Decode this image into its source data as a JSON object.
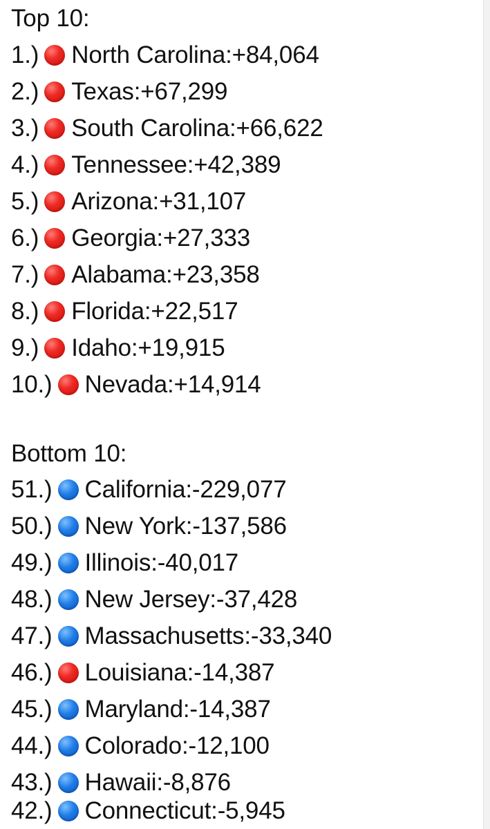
{
  "top_heading": "Top 10:",
  "top": [
    {
      "rank": "1.)",
      "color": "red",
      "state": "North Carolina",
      "value": "+84,064"
    },
    {
      "rank": "2.)",
      "color": "red",
      "state": "Texas",
      "value": "+67,299"
    },
    {
      "rank": "3.)",
      "color": "red",
      "state": "South Carolina",
      "value": "+66,622"
    },
    {
      "rank": "4.)",
      "color": "red",
      "state": "Tennessee",
      "value": "+42,389"
    },
    {
      "rank": "5.)",
      "color": "red",
      "state": "Arizona",
      "value": "+31,107"
    },
    {
      "rank": "6.)",
      "color": "red",
      "state": "Georgia",
      "value": "+27,333"
    },
    {
      "rank": "7.)",
      "color": "red",
      "state": "Alabama",
      "value": "+23,358"
    },
    {
      "rank": "8.)",
      "color": "red",
      "state": "Florida",
      "value": "+22,517"
    },
    {
      "rank": "9.)",
      "color": "red",
      "state": "Idaho",
      "value": "+19,915"
    },
    {
      "rank": "10.)",
      "color": "red",
      "state": "Nevada",
      "value": "+14,914"
    }
  ],
  "bottom_heading": "Bottom 10:",
  "bottom": [
    {
      "rank": "51.)",
      "color": "blue",
      "state": "California",
      "value": "-229,077"
    },
    {
      "rank": "50.)",
      "color": "blue",
      "state": "New York",
      "value": "-137,586"
    },
    {
      "rank": "49.)",
      "color": "blue",
      "state": "Illinois",
      "value": "-40,017"
    },
    {
      "rank": "48.)",
      "color": "blue",
      "state": "New Jersey",
      "value": "-37,428"
    },
    {
      "rank": "47.)",
      "color": "blue",
      "state": "Massachusetts",
      "value": "-33,340"
    },
    {
      "rank": "46.)",
      "color": "red",
      "state": "Louisiana",
      "value": "-14,387"
    },
    {
      "rank": "45.)",
      "color": "blue",
      "state": "Maryland",
      "value": "-14,387"
    },
    {
      "rank": "44.)",
      "color": "blue",
      "state": "Colorado",
      "value": "-12,100"
    },
    {
      "rank": "43.)",
      "color": "blue",
      "state": "Hawaii",
      "value": "-8,876"
    },
    {
      "rank": "42.)",
      "color": "blue",
      "state": "Connecticut",
      "value": "-5,945"
    }
  ]
}
